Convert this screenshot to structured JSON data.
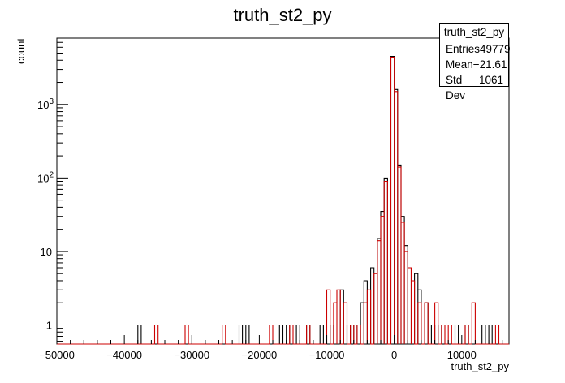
{
  "title": "truth_st2_py",
  "chart_data": {
    "type": "histogram-step",
    "title": "truth_st2_py",
    "xlabel": "truth_st2_py",
    "ylabel": "count",
    "xlim": [
      -50000,
      17000
    ],
    "ylim": [
      0.55,
      8000
    ],
    "yscale": "log",
    "x_ticks": [
      {
        "v": -50000,
        "label": "−50000"
      },
      {
        "v": -40000,
        "label": "−40000"
      },
      {
        "v": -30000,
        "label": "−30000"
      },
      {
        "v": -20000,
        "label": "−20000"
      },
      {
        "v": -10000,
        "label": "−10000"
      },
      {
        "v": 0,
        "label": "0"
      },
      {
        "v": 10000,
        "label": "10000"
      }
    ],
    "y_ticks": [
      {
        "v": 1,
        "label": "1"
      },
      {
        "v": 10,
        "label": "10"
      },
      {
        "v": 100,
        "label": "10",
        "exp": "2"
      },
      {
        "v": 1000,
        "label": "10",
        "exp": "3"
      }
    ],
    "grid": false,
    "series": [
      {
        "color": "#000000",
        "points": [
          [
            -38000,
            1
          ],
          [
            -23000,
            1
          ],
          [
            -22000,
            1
          ],
          [
            -17000,
            1
          ],
          [
            -16000,
            1
          ],
          [
            -14500,
            1
          ],
          [
            -13000,
            1
          ],
          [
            -11000,
            1
          ],
          [
            -9500,
            1
          ],
          [
            -8000,
            3
          ],
          [
            -7000,
            1
          ],
          [
            -6000,
            1
          ],
          [
            -5000,
            2
          ],
          [
            -4500,
            4
          ],
          [
            -3500,
            6
          ],
          [
            -2500,
            15
          ],
          [
            -2000,
            35
          ],
          [
            -1500,
            100
          ],
          [
            -500,
            4500
          ],
          [
            0,
            1600
          ],
          [
            500,
            150
          ],
          [
            1000,
            30
          ],
          [
            1500,
            12
          ],
          [
            2000,
            6
          ],
          [
            3000,
            5
          ],
          [
            3500,
            3
          ],
          [
            4500,
            2
          ],
          [
            5500,
            1
          ],
          [
            6500,
            1
          ],
          [
            9000,
            1
          ],
          [
            10500,
            1
          ],
          [
            13000,
            1
          ],
          [
            14000,
            1
          ]
        ]
      },
      {
        "color": "#cc0000",
        "points": [
          [
            -35500,
            1
          ],
          [
            -31000,
            1
          ],
          [
            -25500,
            1
          ],
          [
            -18500,
            1
          ],
          [
            -15500,
            1
          ],
          [
            -13000,
            1
          ],
          [
            -10000,
            3
          ],
          [
            -9000,
            2
          ],
          [
            -8500,
            3
          ],
          [
            -7500,
            2
          ],
          [
            -6500,
            1
          ],
          [
            -5500,
            1
          ],
          [
            -4500,
            2
          ],
          [
            -4000,
            3
          ],
          [
            -3000,
            5
          ],
          [
            -2500,
            14
          ],
          [
            -2000,
            30
          ],
          [
            -1500,
            90
          ],
          [
            -500,
            4400
          ],
          [
            0,
            1500
          ],
          [
            500,
            140
          ],
          [
            1000,
            25
          ],
          [
            1500,
            10
          ],
          [
            2000,
            6
          ],
          [
            2500,
            4
          ],
          [
            3500,
            2
          ],
          [
            4500,
            2
          ],
          [
            6000,
            2
          ],
          [
            7000,
            1
          ],
          [
            8000,
            1
          ],
          [
            10500,
            1
          ],
          [
            11500,
            2
          ],
          [
            15000,
            1
          ]
        ]
      }
    ]
  },
  "stats": {
    "title": "truth_st2_py",
    "rows": [
      {
        "label": "Entries",
        "value": "49779"
      },
      {
        "label": "Mean",
        "value": "−21.61"
      },
      {
        "label": "Std Dev",
        "value": "1061"
      }
    ]
  }
}
